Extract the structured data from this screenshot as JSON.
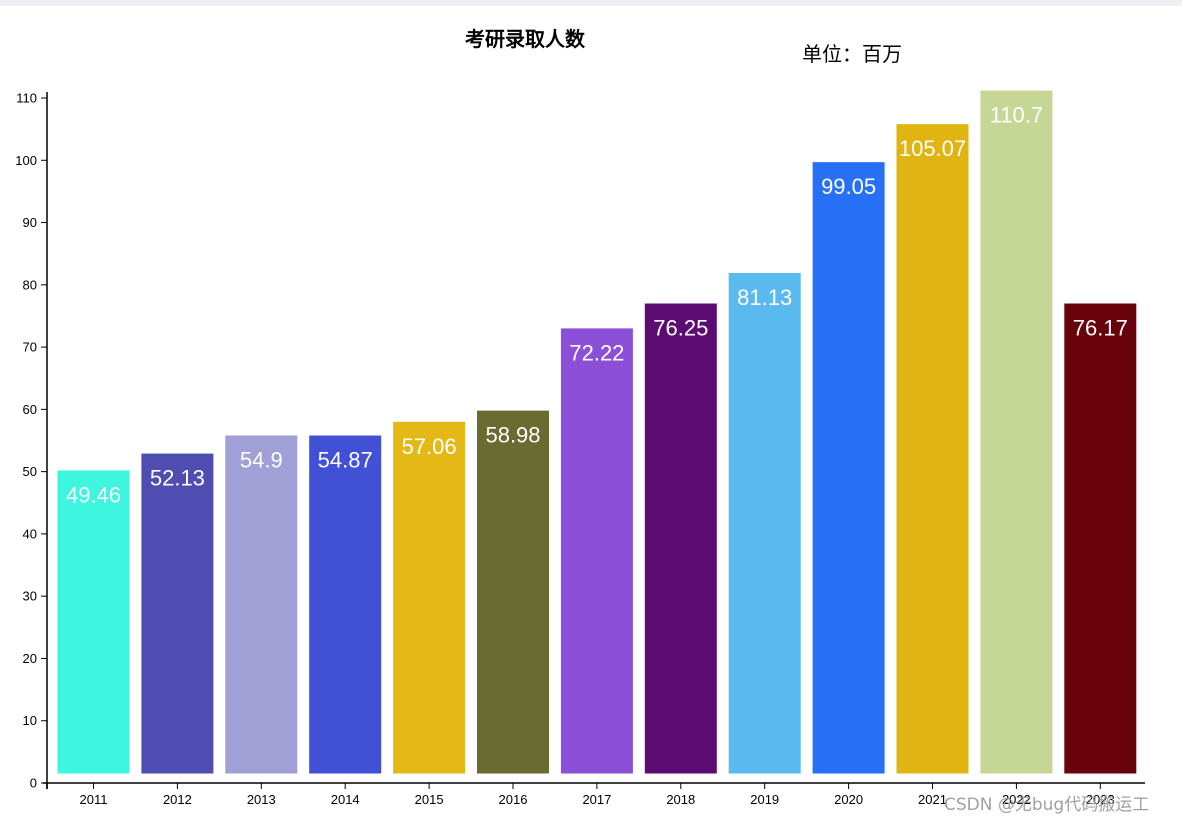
{
  "chart_data": {
    "type": "bar",
    "title": "考研录取人数",
    "unit_label": "单位：百万",
    "categories": [
      "2011",
      "2012",
      "2013",
      "2014",
      "2015",
      "2016",
      "2017",
      "2018",
      "2019",
      "2020",
      "2021",
      "2022",
      "2023"
    ],
    "values": [
      49.46,
      52.13,
      54.9,
      54.87,
      57.06,
      58.98,
      72.22,
      76.25,
      81.13,
      99.05,
      105.07,
      110.7,
      76.17
    ],
    "bar_heights_on_axis": [
      50.2,
      52.9,
      55.8,
      55.8,
      58.0,
      59.8,
      73.0,
      77.0,
      81.9,
      99.7,
      105.8,
      111.2,
      77.0
    ],
    "colors": [
      "#3ef6e0",
      "#4f4db2",
      "#a09fd6",
      "#4150d5",
      "#e5b915",
      "#6a6b30",
      "#8b50d7",
      "#5c0b72",
      "#5abaf0",
      "#2770f6",
      "#e0b512",
      "#c6d694",
      "#69030b"
    ],
    "ylim": [
      0,
      110
    ],
    "yticks": [
      "0",
      "10",
      "20",
      "30",
      "40",
      "50",
      "60",
      "70",
      "80",
      "90",
      "100",
      "110"
    ],
    "xlabel": "",
    "ylabel": "",
    "grid": false,
    "legend": "none"
  },
  "watermark": "CSDN @无bug代码搬运工"
}
